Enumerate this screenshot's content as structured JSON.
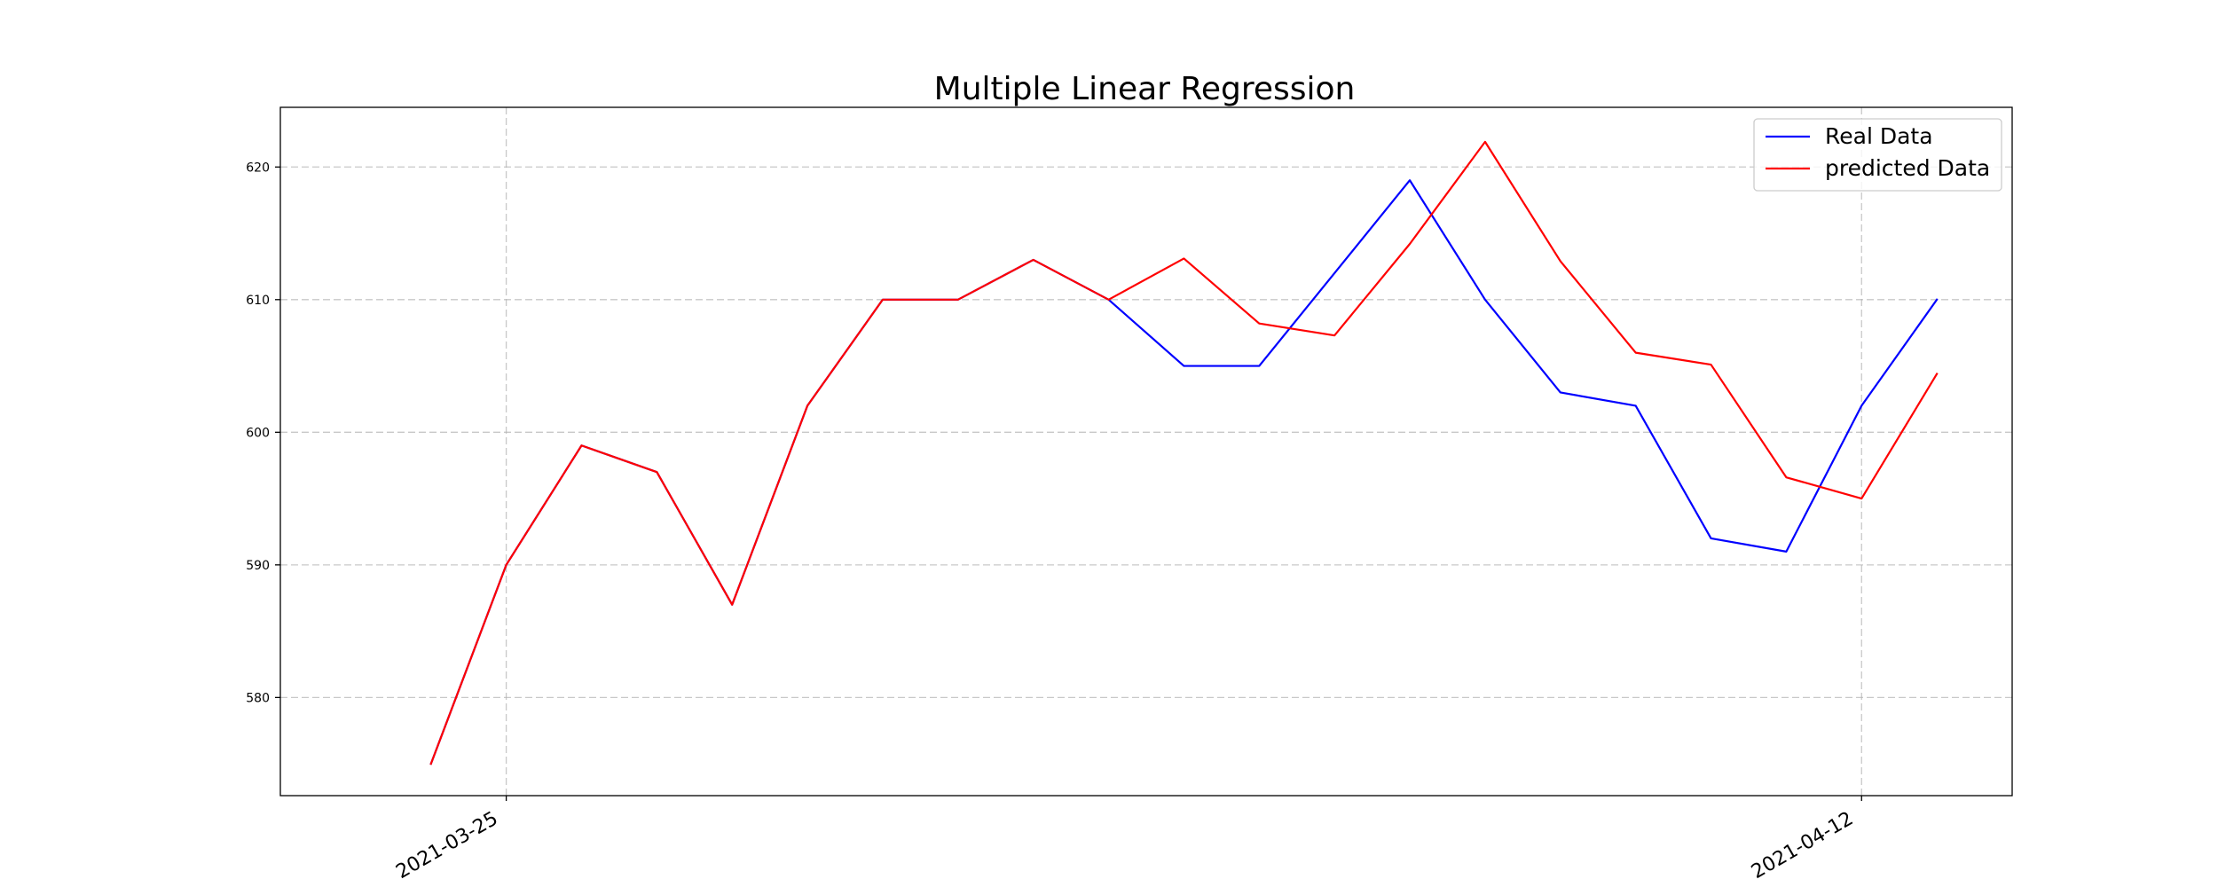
{
  "chart_data": {
    "type": "line",
    "title": "Multiple Linear Regression",
    "xlabel": "",
    "ylabel": "",
    "x": [
      "2021-03-24",
      "2021-03-25",
      "2021-03-26",
      "2021-03-27",
      "2021-03-28",
      "2021-03-29",
      "2021-03-30",
      "2021-03-31",
      "2021-04-01",
      "2021-04-02",
      "2021-04-03",
      "2021-04-04",
      "2021-04-05",
      "2021-04-06",
      "2021-04-07",
      "2021-04-08",
      "2021-04-09",
      "2021-04-10",
      "2021-04-11",
      "2021-04-12",
      "2021-04-13"
    ],
    "xlim": [
      "2021-03-22",
      "2021-04-14"
    ],
    "ylim": [
      572.6,
      624.5
    ],
    "x_ticks": [
      "2021-03-25",
      "2021-04-12"
    ],
    "y_ticks": [
      580,
      590,
      600,
      610,
      620
    ],
    "grid": true,
    "legend_position": "top-right",
    "series": [
      {
        "name": "Real Data",
        "color": "#0000ff",
        "values": [
          575,
          590,
          599,
          597,
          587,
          602,
          610,
          610,
          613,
          610,
          605,
          605,
          612,
          619,
          610,
          603,
          602,
          592,
          591,
          602,
          610
        ]
      },
      {
        "name": "predicted Data",
        "color": "#ff0000",
        "values": [
          575,
          590,
          599,
          597,
          587,
          602,
          610,
          610,
          613,
          610,
          613.1,
          608.2,
          607.3,
          614.2,
          621.9,
          612.9,
          606.0,
          605.1,
          596.6,
          595.0,
          604.4
        ]
      }
    ]
  }
}
